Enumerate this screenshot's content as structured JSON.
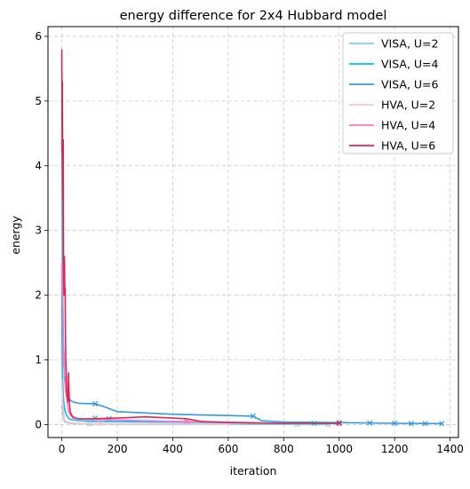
{
  "chart_data": {
    "type": "line",
    "title": "energy difference for 2x4 Hubbard model",
    "xlabel": "iteration",
    "ylabel": "energy",
    "xlim": [
      -50,
      1430
    ],
    "ylim": [
      -0.2,
      6.15
    ],
    "xticks": [
      0,
      200,
      400,
      600,
      800,
      1000,
      1200,
      1400
    ],
    "yticks": [
      0,
      1,
      2,
      3,
      4,
      5,
      6
    ],
    "grid": true,
    "grid_style": "dashed",
    "legend_position": "top-right",
    "series": [
      {
        "name": "VISA, U=2",
        "color": "#87ceeb",
        "x": [
          0,
          1,
          2,
          3,
          4,
          6,
          8,
          10,
          14,
          20,
          30,
          50,
          100,
          300,
          600,
          900,
          960
        ],
        "y": [
          0.3,
          0.25,
          0.3,
          0.2,
          0.15,
          0.1,
          0.07,
          0.05,
          0.04,
          0.03,
          0.02,
          0.015,
          0.01,
          0.005,
          0.003,
          0.002,
          0.002
        ],
        "markers": [
          [
            100,
            0.01
          ],
          [
            850,
            0.003
          ],
          [
            960,
            0.002
          ]
        ]
      },
      {
        "name": "VISA, U=4",
        "color": "#00bfff",
        "x": [
          0,
          1,
          2,
          3,
          4,
          6,
          8,
          12,
          20,
          30,
          60,
          120,
          300,
          600,
          900,
          1000
        ],
        "y": [
          2.3,
          1.3,
          0.9,
          0.7,
          0.55,
          0.4,
          0.3,
          0.2,
          0.12,
          0.08,
          0.06,
          0.05,
          0.04,
          0.03,
          0.02,
          0.015
        ],
        "markers": [
          [
            120,
            0.1
          ],
          [
            170,
            0.09
          ],
          [
            910,
            0.02
          ],
          [
            1000,
            0.02
          ]
        ]
      },
      {
        "name": "VISA, U=6",
        "color": "#3399e6",
        "x": [
          0,
          1,
          2,
          3,
          4,
          5,
          6,
          8,
          10,
          14,
          18,
          24,
          30,
          40,
          60,
          120,
          150,
          200,
          400,
          600,
          690,
          720,
          800,
          1000,
          1200,
          1370
        ],
        "y": [
          4.4,
          4.0,
          3.0,
          2.2,
          1.7,
          1.4,
          1.2,
          1.0,
          0.8,
          0.6,
          0.5,
          0.42,
          0.38,
          0.35,
          0.33,
          0.32,
          0.28,
          0.2,
          0.16,
          0.14,
          0.13,
          0.06,
          0.04,
          0.03,
          0.02,
          0.015
        ],
        "markers": [
          [
            120,
            0.32
          ],
          [
            690,
            0.13
          ],
          [
            1000,
            0.03
          ],
          [
            1110,
            0.025
          ],
          [
            1200,
            0.02
          ],
          [
            1260,
            0.015
          ],
          [
            1310,
            0.015
          ],
          [
            1370,
            0.015
          ]
        ]
      },
      {
        "name": "HVA, U=2",
        "color": "#ffc0cb",
        "x": [
          0,
          1,
          2,
          3,
          4,
          6,
          8,
          10,
          15,
          20,
          30,
          50,
          100,
          300,
          600
        ],
        "y": [
          0.7,
          0.5,
          0.55,
          0.35,
          0.3,
          0.2,
          0.12,
          0.08,
          0.05,
          0.04,
          0.03,
          0.02,
          0.015,
          0.008,
          0.005
        ],
        "markers": [
          [
            140,
            0.015
          ]
        ]
      },
      {
        "name": "HVA, U=4",
        "color": "#ff77c4",
        "x": [
          0,
          2,
          4,
          5,
          6,
          8,
          10,
          12,
          14,
          16,
          18,
          20,
          25,
          30,
          40,
          60,
          100,
          200,
          400,
          700
        ],
        "y": [
          2.5,
          2.0,
          1.8,
          1.2,
          0.9,
          1.1,
          0.7,
          0.6,
          0.5,
          0.45,
          0.4,
          0.3,
          0.2,
          0.15,
          0.1,
          0.09,
          0.08,
          0.07,
          0.05,
          0.03
        ],
        "markers": [
          [
            450,
            0.05
          ]
        ]
      },
      {
        "name": "HVA, U=6",
        "color": "#e0284f",
        "x": [
          0,
          1,
          2,
          3,
          4,
          5,
          6,
          7,
          8,
          9,
          10,
          11,
          12,
          13,
          14,
          15,
          16,
          17,
          18,
          20,
          22,
          24,
          26,
          28,
          30,
          35,
          40,
          50,
          60,
          100,
          200,
          300,
          400,
          450,
          500,
          600,
          800,
          1000
        ],
        "y": [
          5.8,
          4.2,
          5.3,
          4.0,
          3.5,
          4.4,
          2.6,
          2.2,
          2.0,
          2.6,
          2.5,
          2.0,
          2.1,
          1.4,
          1.0,
          0.9,
          0.8,
          0.6,
          0.5,
          0.4,
          0.35,
          0.8,
          0.5,
          0.3,
          0.2,
          0.15,
          0.12,
          0.1,
          0.09,
          0.09,
          0.1,
          0.12,
          0.1,
          0.09,
          0.05,
          0.03,
          0.02,
          0.02
        ],
        "markers": [
          [
            1000,
            0.02
          ]
        ]
      }
    ]
  }
}
